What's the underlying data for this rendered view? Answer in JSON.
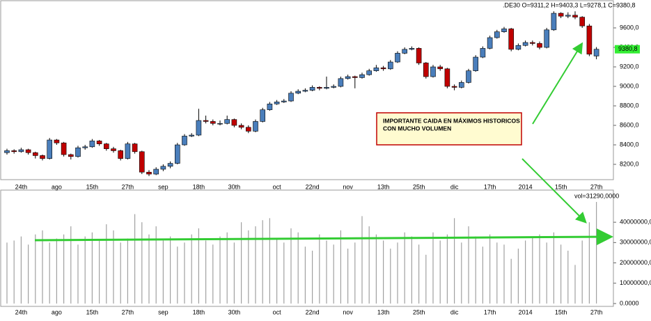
{
  "chart_data": [
    {
      "type": "candlestick",
      "title": ".DE30 O=9311,2 H=9403,3 L=9278,1 C=9380,8",
      "up_color": "#4a7ebb",
      "down_color": "#c00000",
      "categories": [
        null,
        null,
        "24th",
        null,
        null,
        null,
        null,
        "ago",
        null,
        null,
        null,
        null,
        "15th",
        null,
        null,
        null,
        null,
        "27th",
        null,
        null,
        null,
        null,
        "sep",
        null,
        null,
        null,
        null,
        "18th",
        null,
        null,
        null,
        null,
        "30th",
        null,
        null,
        null,
        null,
        null,
        "oct",
        null,
        null,
        null,
        null,
        "22nd",
        null,
        null,
        null,
        null,
        "nov",
        null,
        null,
        null,
        null,
        "13th",
        null,
        null,
        null,
        null,
        "25th",
        null,
        null,
        null,
        null,
        "dic",
        null,
        null,
        null,
        null,
        "17th",
        null,
        null,
        null,
        null,
        "2014",
        null,
        null,
        null,
        null,
        "15th",
        null,
        null,
        null,
        null,
        "27th"
      ],
      "ohlc": [
        [
          8320,
          8360,
          8300,
          8340
        ],
        [
          8340,
          8355,
          8310,
          8330
        ],
        [
          8330,
          8370,
          8320,
          8350
        ],
        [
          8350,
          8360,
          8300,
          8320
        ],
        [
          8320,
          8330,
          8260,
          8290
        ],
        [
          8290,
          8300,
          8240,
          8260
        ],
        [
          8260,
          8470,
          8250,
          8450
        ],
        [
          8450,
          8460,
          8400,
          8420
        ],
        [
          8420,
          8430,
          8280,
          8300
        ],
        [
          8300,
          8310,
          8250,
          8280
        ],
        [
          8280,
          8390,
          8270,
          8370
        ],
        [
          8370,
          8400,
          8350,
          8380
        ],
        [
          8380,
          8460,
          8370,
          8440
        ],
        [
          8440,
          8450,
          8390,
          8410
        ],
        [
          8410,
          8420,
          8340,
          8360
        ],
        [
          8360,
          8380,
          8320,
          8340
        ],
        [
          8340,
          8350,
          8240,
          8260
        ],
        [
          8260,
          8430,
          8250,
          8410
        ],
        [
          8410,
          8420,
          8310,
          8330
        ],
        [
          8330,
          8340,
          8100,
          8120
        ],
        [
          8120,
          8140,
          8080,
          8100
        ],
        [
          8100,
          8170,
          8090,
          8150
        ],
        [
          8150,
          8200,
          8130,
          8180
        ],
        [
          8180,
          8230,
          8160,
          8210
        ],
        [
          8210,
          8420,
          8200,
          8400
        ],
        [
          8400,
          8510,
          8390,
          8490
        ],
        [
          8490,
          8520,
          8480,
          8500
        ],
        [
          8500,
          8770,
          8490,
          8650
        ],
        [
          8650,
          8700,
          8620,
          8640
        ],
        [
          8640,
          8660,
          8600,
          8620
        ],
        [
          8620,
          8650,
          8600,
          8620
        ],
        [
          8620,
          8700,
          8610,
          8660
        ],
        [
          8660,
          8670,
          8580,
          8600
        ],
        [
          8600,
          8620,
          8560,
          8580
        ],
        [
          8580,
          8600,
          8520,
          8540
        ],
        [
          8540,
          8660,
          8530,
          8640
        ],
        [
          8640,
          8780,
          8630,
          8760
        ],
        [
          8760,
          8840,
          8750,
          8820
        ],
        [
          8820,
          8860,
          8810,
          8840
        ],
        [
          8840,
          8870,
          8830,
          8850
        ],
        [
          8850,
          8950,
          8840,
          8930
        ],
        [
          8930,
          8970,
          8920,
          8950
        ],
        [
          8950,
          8980,
          8940,
          8960
        ],
        [
          8960,
          9010,
          8950,
          8990
        ],
        [
          8990,
          9000,
          8960,
          8980
        ],
        [
          8980,
          9100,
          8970,
          8990
        ],
        [
          8990,
          9020,
          8980,
          9000
        ],
        [
          9000,
          9100,
          8990,
          9080
        ],
        [
          9080,
          9120,
          9070,
          9100
        ],
        [
          9100,
          9110,
          8980,
          9090
        ],
        [
          9090,
          9140,
          9080,
          9120
        ],
        [
          9120,
          9180,
          9110,
          9160
        ],
        [
          9160,
          9220,
          9150,
          9190
        ],
        [
          9190,
          9210,
          9160,
          9180
        ],
        [
          9180,
          9270,
          9170,
          9250
        ],
        [
          9250,
          9360,
          9240,
          9340
        ],
        [
          9340,
          9400,
          9330,
          9380
        ],
        [
          9380,
          9410,
          9370,
          9390
        ],
        [
          9390,
          9400,
          9220,
          9240
        ],
        [
          9240,
          9250,
          9080,
          9100
        ],
        [
          9100,
          9220,
          9090,
          9200
        ],
        [
          9200,
          9220,
          9160,
          9180
        ],
        [
          9180,
          9190,
          8980,
          9000
        ],
        [
          9000,
          9020,
          8960,
          8990
        ],
        [
          8990,
          9060,
          8980,
          9040
        ],
        [
          9040,
          9180,
          9030,
          9160
        ],
        [
          9160,
          9320,
          9150,
          9300
        ],
        [
          9300,
          9410,
          9290,
          9390
        ],
        [
          9390,
          9520,
          9380,
          9500
        ],
        [
          9500,
          9580,
          9490,
          9560
        ],
        [
          9560,
          9610,
          9550,
          9590
        ],
        [
          9590,
          9600,
          9360,
          9380
        ],
        [
          9380,
          9440,
          9370,
          9420
        ],
        [
          9420,
          9470,
          9410,
          9450
        ],
        [
          9450,
          9470,
          9420,
          9440
        ],
        [
          9440,
          9460,
          9380,
          9400
        ],
        [
          9400,
          9600,
          9390,
          9580
        ],
        [
          9580,
          9770,
          9570,
          9750
        ],
        [
          9750,
          9760,
          9700,
          9720
        ],
        [
          9720,
          9760,
          9700,
          9730
        ],
        [
          9730,
          9770,
          9690,
          9710
        ],
        [
          9710,
          9720,
          9600,
          9620
        ],
        [
          9620,
          9640,
          9310,
          9330
        ],
        [
          9311.2,
          9403.3,
          9278.1,
          9380.8
        ]
      ],
      "last_price_label": "9380,8",
      "ylim": [
        8043,
        9786
      ],
      "yticks": [
        {
          "value": 8200,
          "label": "8200,0"
        },
        {
          "value": 8400,
          "label": "8400,0"
        },
        {
          "value": 8600,
          "label": "8600,0"
        },
        {
          "value": 8800,
          "label": "8800,0"
        },
        {
          "value": 9000,
          "label": "9000,0"
        },
        {
          "value": 9200,
          "label": "9200,0"
        },
        {
          "value": 9400,
          "label": "9400,0"
        },
        {
          "value": 9600,
          "label": "9600,0"
        }
      ],
      "annotation": [
        "IMPORTANTE CAIDA EN MÁXIMOS HISTORICOS",
        "CON MUCHO VOLUMEN"
      ]
    },
    {
      "type": "volume",
      "color": "#a0a0a0",
      "legend": "vol=31290,0000",
      "categories": [
        null,
        null,
        "24th",
        null,
        null,
        null,
        null,
        "ago",
        null,
        null,
        null,
        null,
        "15th",
        null,
        null,
        null,
        null,
        "27th",
        null,
        null,
        null,
        null,
        "sep",
        null,
        null,
        null,
        null,
        "18th",
        null,
        null,
        null,
        null,
        "30th",
        null,
        null,
        null,
        null,
        null,
        "oct",
        null,
        null,
        null,
        null,
        "22nd",
        null,
        null,
        null,
        null,
        "nov",
        null,
        null,
        null,
        null,
        "13th",
        null,
        null,
        null,
        null,
        "25th",
        null,
        null,
        null,
        null,
        "dic",
        null,
        null,
        null,
        null,
        "17th",
        null,
        null,
        null,
        null,
        "2014",
        null,
        null,
        null,
        null,
        "15th",
        null,
        null,
        null,
        null,
        "27th"
      ],
      "values": [
        30000000,
        31000000,
        33000000,
        29000000,
        34000000,
        36000000,
        30000000,
        32000000,
        34000000,
        38000000,
        29000000,
        33000000,
        35000000,
        31000000,
        39000000,
        36000000,
        30000000,
        32000000,
        44000000,
        40000000,
        34000000,
        38000000,
        31000000,
        33000000,
        28000000,
        30000000,
        34000000,
        37000000,
        31000000,
        29000000,
        33000000,
        35000000,
        30000000,
        40000000,
        36000000,
        38000000,
        41000000,
        42000000,
        32000000,
        30000000,
        37000000,
        35000000,
        28000000,
        26000000,
        34000000,
        31000000,
        29000000,
        36000000,
        27000000,
        30000000,
        43000000,
        38000000,
        34000000,
        31000000,
        27000000,
        30000000,
        35000000,
        33000000,
        29000000,
        24000000,
        35000000,
        31000000,
        34000000,
        42000000,
        30000000,
        38000000,
        33000000,
        28000000,
        34000000,
        30000000,
        29000000,
        22000000,
        27000000,
        31000000,
        33000000,
        34000000,
        30000000,
        35000000,
        29000000,
        26000000,
        19000000,
        31000000,
        40000000,
        50000000
      ],
      "ylim": [
        -1400000,
        54100000
      ],
      "yticks": [
        {
          "value": 0,
          "label": "0.0000"
        },
        {
          "value": 10000000,
          "label": "10000000,0"
        },
        {
          "value": 20000000,
          "label": "20000000,0"
        },
        {
          "value": 30000000,
          "label": "30000000,0"
        },
        {
          "value": 40000000,
          "label": "40000000,0"
        }
      ]
    }
  ]
}
